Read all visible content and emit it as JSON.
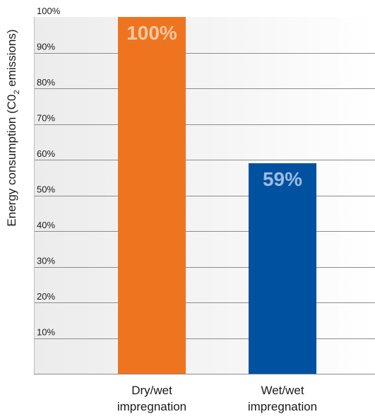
{
  "chart_data": {
    "type": "bar",
    "categories": [
      "Dry/wet impregnation",
      "Wet/wet impregnation"
    ],
    "category_lines": [
      [
        "Dry/wet",
        "impregnation"
      ],
      [
        "Wet/wet",
        "impregnation"
      ]
    ],
    "values": [
      100,
      59
    ],
    "data_labels": [
      "100%",
      "59%"
    ],
    "bar_colors": [
      "#ee741f",
      "#0051a0"
    ],
    "data_label_colors": [
      "#f8c7a2",
      "#9dbbe4"
    ],
    "ylabel_prefix": "Energy consumption (C0",
    "ylabel_sub": "2",
    "ylabel_suffix": " emissions)",
    "ylim": [
      0,
      100
    ],
    "yticks": [
      10,
      20,
      30,
      40,
      50,
      60,
      70,
      80,
      90,
      100
    ],
    "ytick_labels": [
      "10%",
      "20%",
      "30%",
      "40%",
      "50%",
      "60%",
      "70%",
      "80%",
      "90%",
      "100%"
    ],
    "grid": true,
    "gridline_color": "#8c8c8c"
  }
}
